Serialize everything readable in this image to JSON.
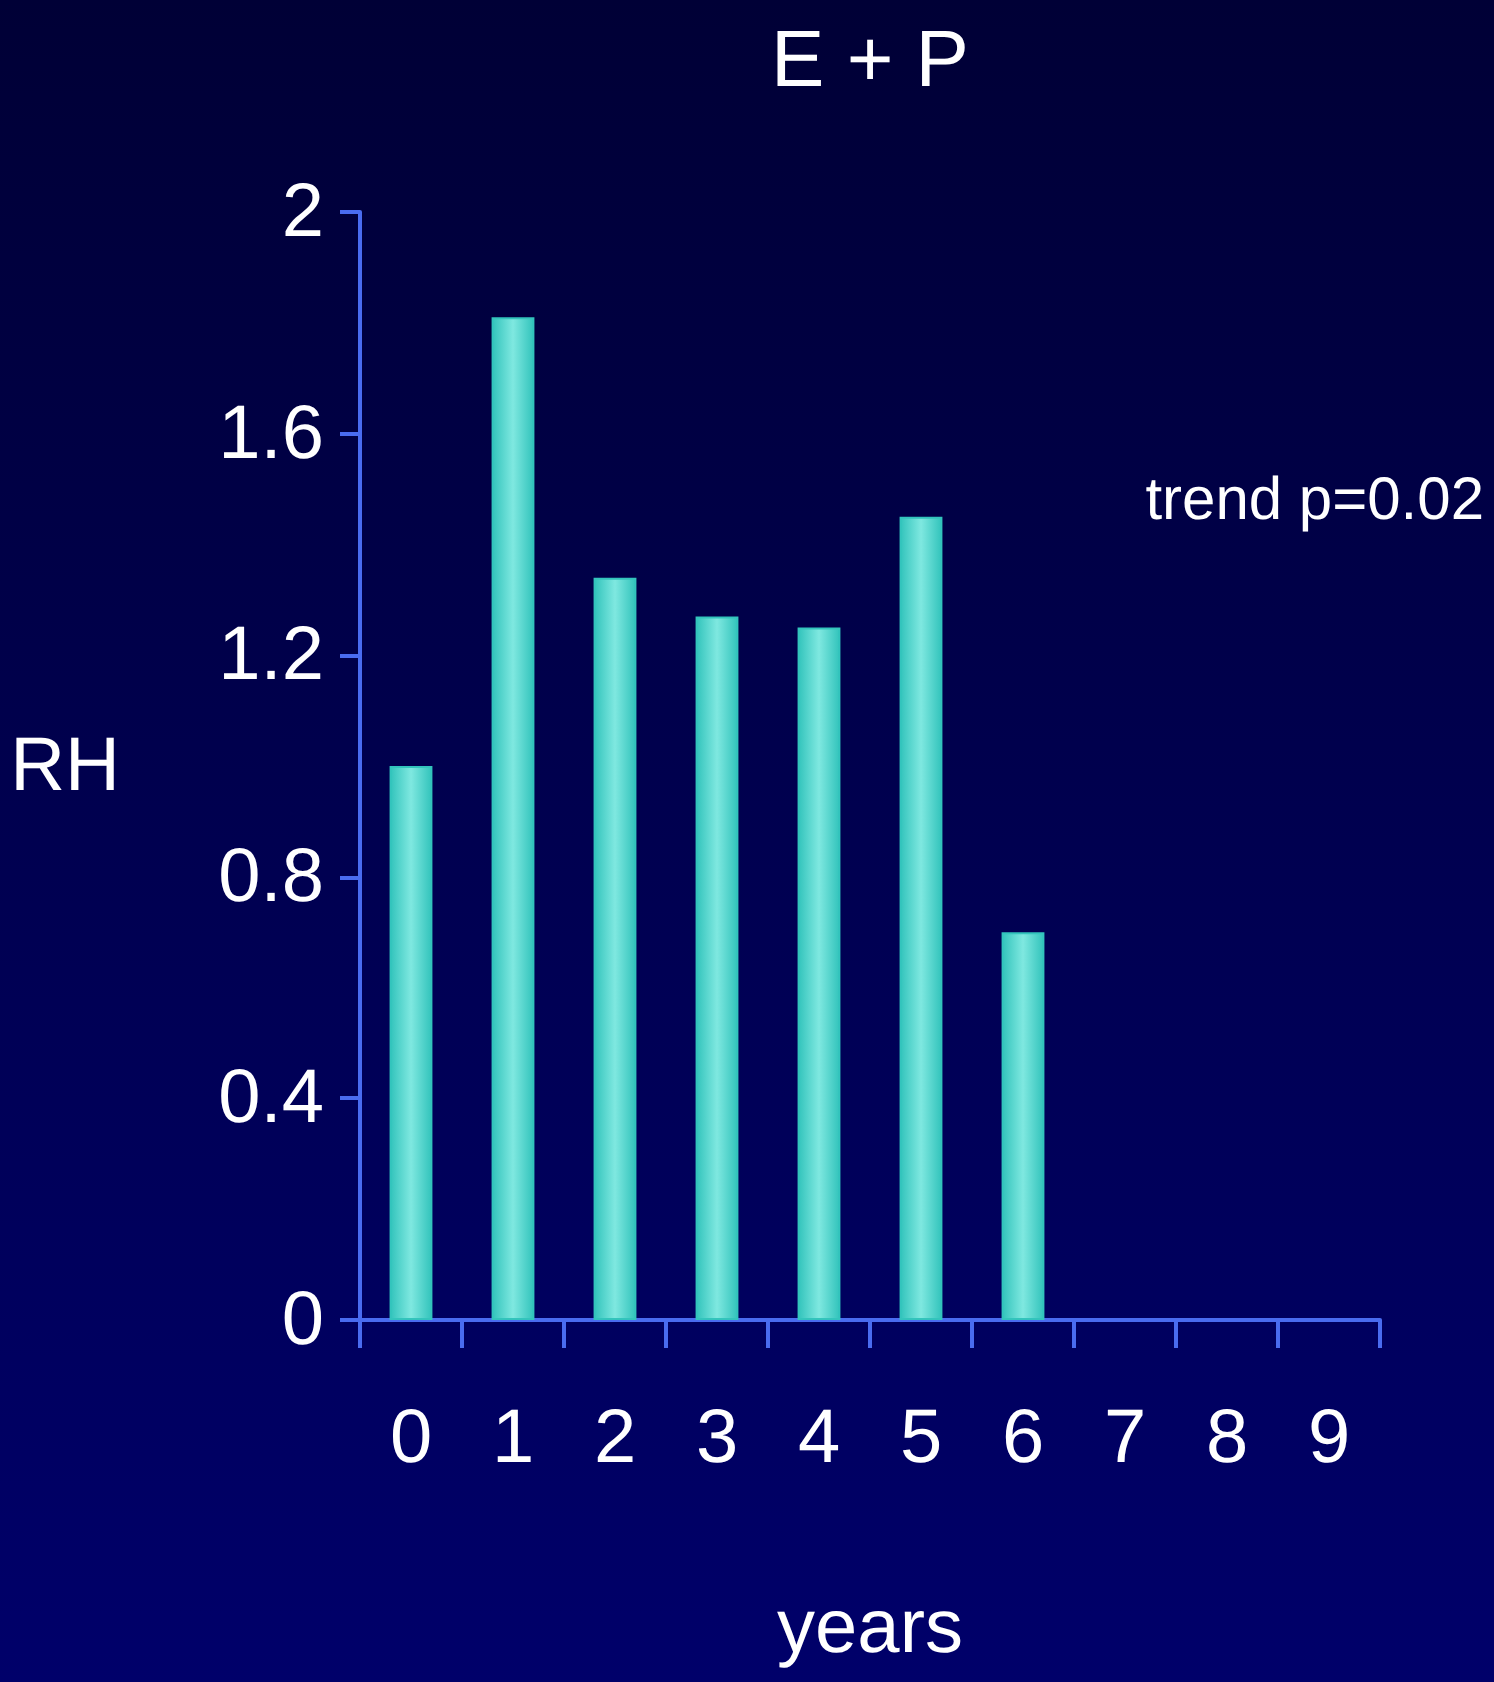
{
  "chart_data": {
    "type": "bar",
    "title": "E + P",
    "xlabel": "years",
    "ylabel": "RH",
    "categories": [
      "0",
      "1",
      "2",
      "3",
      "4",
      "5",
      "6",
      "7",
      "8",
      "9"
    ],
    "values": [
      1.0,
      1.81,
      1.34,
      1.27,
      1.25,
      1.45,
      0.7,
      null,
      null,
      null
    ],
    "color": "#33c4bc",
    "ylim": [
      0,
      2
    ],
    "yticks": [
      0,
      0.4,
      0.8,
      1.2,
      1.6,
      2
    ],
    "annotations": [
      "trend p=0.02"
    ],
    "grid": false
  }
}
